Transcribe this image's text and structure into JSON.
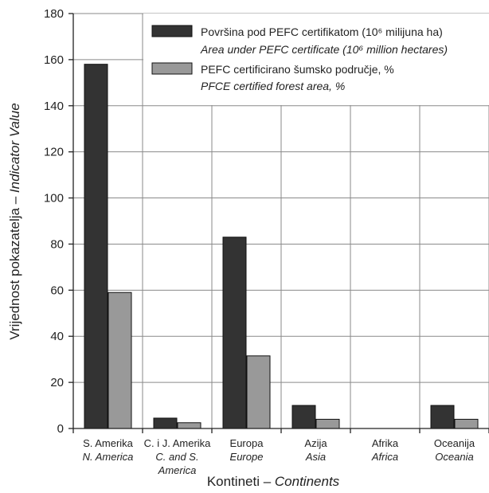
{
  "chart_data": {
    "type": "bar",
    "categories": [
      {
        "hr": "S. Amerika",
        "en": [
          "N. America"
        ]
      },
      {
        "hr": "C. i J. Amerika",
        "en": [
          "C. and S.",
          "America"
        ]
      },
      {
        "hr": "Europa",
        "en": [
          "Europe"
        ]
      },
      {
        "hr": "Azija",
        "en": [
          "Asia"
        ]
      },
      {
        "hr": "Afrika",
        "en": [
          "Africa"
        ]
      },
      {
        "hr": "Oceanija",
        "en": [
          "Oceania"
        ]
      }
    ],
    "series": [
      {
        "name": "Površina pod PEFC certifikatom (10⁶ milijuna ha)",
        "name_en": "Area under PEFC certificate (10⁶ million hectares)",
        "color": "#333333",
        "values": [
          158,
          4.5,
          83,
          10,
          0,
          10
        ]
      },
      {
        "name": "PEFC certificirano šumsko područje, %",
        "name_en": "PFCE certified forest area, %",
        "color": "#999999",
        "values": [
          59,
          2.5,
          31.5,
          4,
          0,
          4
        ]
      }
    ],
    "ylim": [
      0,
      180
    ],
    "yticks": [
      0,
      20,
      40,
      60,
      80,
      100,
      120,
      140,
      160,
      180
    ],
    "xlabel": {
      "hr": "Kontineti – ",
      "en": "Continents"
    },
    "ylabel": {
      "hr": "Vrijednost pokazatelja  – ",
      "en": "Indicator Value"
    },
    "grid": true,
    "legend_position": "top-right"
  }
}
